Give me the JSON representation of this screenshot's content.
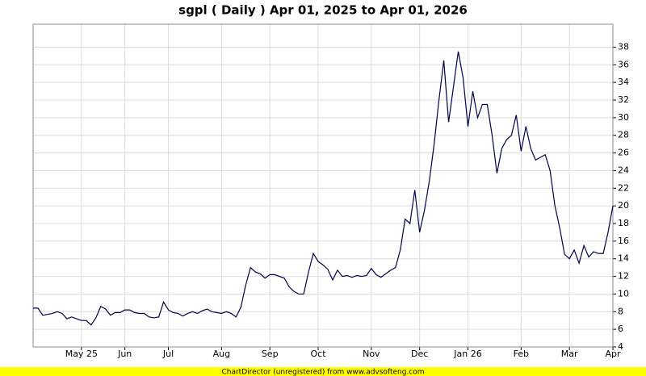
{
  "chart_data": {
    "type": "line",
    "title": "sgpl ( Daily ) Apr 01, 2025 to Apr 01, 2026",
    "footer": "ChartDirector (unregistered) from www.advsofteng.com",
    "categories": [
      null,
      null,
      null,
      null,
      null,
      null,
      null,
      null,
      null,
      null,
      "May 25",
      null,
      null,
      null,
      null,
      null,
      null,
      null,
      null,
      "Jun",
      null,
      null,
      null,
      null,
      null,
      null,
      null,
      null,
      "Jul",
      null,
      null,
      null,
      null,
      null,
      null,
      null,
      null,
      null,
      null,
      "Aug",
      null,
      null,
      null,
      null,
      null,
      null,
      null,
      null,
      null,
      "Sep",
      null,
      null,
      null,
      null,
      null,
      null,
      null,
      null,
      null,
      "Oct",
      null,
      null,
      null,
      null,
      null,
      null,
      null,
      null,
      null,
      null,
      "Nov",
      null,
      null,
      null,
      null,
      null,
      null,
      null,
      null,
      null,
      "Dec",
      null,
      null,
      null,
      null,
      null,
      null,
      null,
      null,
      null,
      "Jan 26",
      null,
      null,
      null,
      null,
      null,
      null,
      null,
      null,
      null,
      null,
      "Feb",
      null,
      null,
      null,
      null,
      null,
      null,
      null,
      null,
      null,
      "Mar",
      null,
      null,
      null,
      null,
      null,
      null,
      null,
      null,
      "Apr"
    ],
    "values": [
      8.4,
      8.4,
      7.6,
      7.7,
      7.8,
      8.0,
      7.8,
      7.2,
      7.4,
      7.2,
      7.0,
      7.0,
      6.5,
      7.3,
      8.6,
      8.3,
      7.6,
      7.9,
      7.9,
      8.2,
      8.2,
      7.9,
      7.8,
      7.8,
      7.4,
      7.3,
      7.4,
      9.1,
      8.2,
      7.9,
      7.8,
      7.5,
      7.8,
      8.0,
      7.8,
      8.1,
      8.3,
      8.0,
      7.9,
      7.8,
      8.0,
      7.8,
      7.4,
      8.5,
      11.0,
      13.0,
      12.5,
      12.3,
      11.8,
      12.2,
      12.2,
      12.0,
      11.8,
      10.8,
      10.3,
      10.0,
      10.0,
      12.5,
      14.6,
      13.7,
      13.3,
      12.8,
      11.6,
      12.7,
      12.0,
      12.1,
      11.9,
      12.1,
      12.0,
      12.1,
      12.9,
      12.2,
      11.9,
      12.3,
      12.7,
      13.0,
      15.0,
      18.5,
      18.0,
      21.8,
      17.0,
      19.5,
      22.8,
      27.0,
      32.0,
      36.5,
      29.5,
      33.5,
      37.5,
      34.5,
      29.0,
      33.0,
      30.0,
      31.5,
      31.5,
      28.0,
      23.7,
      26.5,
      27.5,
      28.0,
      30.3,
      26.2,
      29.0,
      26.5,
      25.2,
      25.5,
      25.8,
      24.0,
      20.0,
      17.5,
      14.5,
      14.0,
      15.0,
      13.5,
      15.5,
      14.2,
      14.8,
      14.6,
      14.6,
      17.0,
      20.0
    ],
    "color": "#000050",
    "ylim": [
      4,
      40.6
    ],
    "yticks": [
      4,
      6,
      8,
      10,
      12,
      14,
      16,
      18,
      20,
      22,
      24,
      26,
      28,
      30,
      32,
      34,
      36,
      38
    ],
    "grid": true
  }
}
